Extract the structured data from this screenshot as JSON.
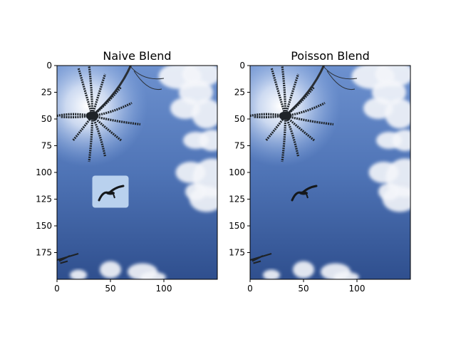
{
  "chart_data": [
    {
      "type": "image",
      "title": "Naive Blend",
      "xlim": [
        0,
        150
      ],
      "ylim": [
        200,
        0
      ],
      "xticks": [
        0,
        50,
        100
      ],
      "yticks": [
        0,
        25,
        50,
        75,
        100,
        125,
        150,
        175
      ],
      "pasted_patch": {
        "x": [
          33,
          67
        ],
        "y": [
          103,
          133
        ]
      },
      "bird_center": {
        "x": 50,
        "y": 118
      }
    },
    {
      "type": "image",
      "title": "Poisson Blend",
      "xlim": [
        0,
        150
      ],
      "ylim": [
        200,
        0
      ],
      "xticks": [
        0,
        50,
        100
      ],
      "yticks": [
        0,
        25,
        50,
        75,
        100,
        125,
        150,
        175
      ],
      "bird_center": {
        "x": 50,
        "y": 118
      }
    }
  ]
}
